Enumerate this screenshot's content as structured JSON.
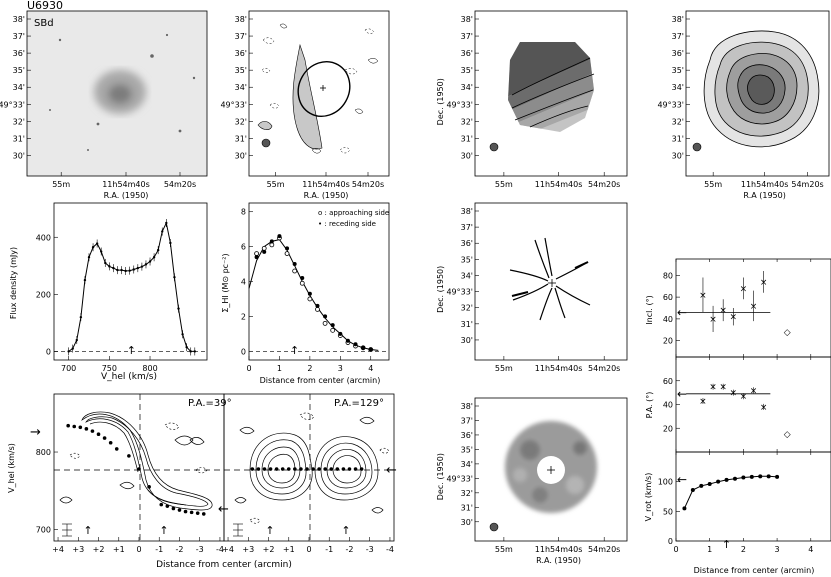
{
  "galaxy": "U6930",
  "morph_type": "SBd",
  "ra_label": "R.A. (1950)",
  "ra_label_alt": "R.A (1950)",
  "dec_label": "Dec. (1950)",
  "dec_ticks": [
    "38'",
    "37'",
    "36'",
    "35'",
    "34'",
    "33'",
    "32'",
    "31'",
    "30'"
  ],
  "dec_center": "49°33'",
  "ra_ticks": [
    "55m",
    "11h54m40s",
    "54m20s"
  ],
  "chart_data": [
    {
      "type": "line",
      "panel": "global HI profile",
      "xlabel": "V_hel (km/s)",
      "ylabel": "Flux density (mJy)",
      "xlim": [
        682,
        870
      ],
      "ylim": [
        -30,
        520
      ],
      "xticks": [
        700,
        750,
        800
      ],
      "yticks": [
        0,
        200,
        400
      ],
      "systemic_marker": 777,
      "x": [
        700,
        705,
        710,
        715,
        720,
        725,
        730,
        735,
        740,
        745,
        750,
        755,
        760,
        765,
        770,
        775,
        780,
        785,
        790,
        795,
        800,
        805,
        810,
        815,
        820,
        825,
        830,
        835,
        840,
        845,
        850,
        855
      ],
      "y": [
        0,
        10,
        40,
        120,
        250,
        330,
        365,
        378,
        350,
        310,
        298,
        292,
        285,
        285,
        282,
        283,
        287,
        292,
        297,
        305,
        315,
        330,
        355,
        420,
        450,
        380,
        260,
        150,
        60,
        15,
        0,
        0
      ]
    },
    {
      "type": "scatter",
      "panel": "radial HI surface density",
      "xlabel": "Distance from center (arcmin)",
      "ylabel": "Σ_HI (M⊙ pc⁻²)",
      "xlim": [
        0,
        4.6
      ],
      "ylim": [
        -0.5,
        8.5
      ],
      "xticks": [
        0,
        1,
        2,
        3,
        4
      ],
      "yticks": [
        0,
        2,
        4,
        6,
        8
      ],
      "legend": [
        "o : approaching side",
        "• : receding side"
      ],
      "systemic_marker": 1.5,
      "series": [
        {
          "name": "o : approaching side",
          "x": [
            0.25,
            0.5,
            0.75,
            1.0,
            1.25,
            1.5,
            1.75,
            2.0,
            2.25,
            2.5,
            2.75,
            3.0,
            3.25,
            3.5,
            3.75,
            4.0
          ],
          "y": [
            5.6,
            5.9,
            6.1,
            6.5,
            5.6,
            4.6,
            3.9,
            3.0,
            2.4,
            1.6,
            1.2,
            0.9,
            0.5,
            0.3,
            0.2,
            0.1
          ]
        },
        {
          "name": "• : receding side",
          "x": [
            0.25,
            0.5,
            0.75,
            1.0,
            1.25,
            1.5,
            1.75,
            2.0,
            2.25,
            2.5,
            2.75,
            3.0,
            3.25,
            3.5,
            3.75,
            4.0
          ],
          "y": [
            5.4,
            5.7,
            6.3,
            6.6,
            5.9,
            5.0,
            4.2,
            3.3,
            2.6,
            2.0,
            1.5,
            1.0,
            0.6,
            0.4,
            0.2,
            0.1
          ]
        },
        {
          "name": "fit",
          "x": [
            0,
            0.25,
            0.5,
            0.75,
            1.0,
            1.25,
            1.5,
            1.75,
            2.0,
            2.25,
            2.5,
            2.75,
            3.0,
            3.25,
            3.5,
            3.75,
            4.0,
            4.25
          ],
          "y": [
            3.6,
            5.2,
            6.0,
            6.3,
            6.4,
            5.8,
            4.9,
            4.0,
            3.2,
            2.5,
            1.9,
            1.4,
            1.0,
            0.6,
            0.35,
            0.2,
            0.1,
            0.05
          ]
        }
      ]
    },
    {
      "type": "scatter",
      "panel": "inclination",
      "ylabel": "Incl. (°)",
      "ylim": [
        5,
        95
      ],
      "yticks": [
        20,
        40,
        60,
        80
      ],
      "xlim": [
        0,
        4.6
      ],
      "adopted": 46,
      "x": [
        0.8,
        1.1,
        1.4,
        1.7,
        2.0,
        2.3,
        2.6
      ],
      "y": [
        62,
        40,
        48,
        42,
        68,
        52,
        74
      ],
      "err": [
        16,
        12,
        10,
        8,
        10,
        14,
        10
      ],
      "extra_x": 3.3,
      "extra_y": 28
    },
    {
      "type": "scatter",
      "panel": "position angle",
      "ylabel": "P.A. (°)",
      "ylim": [
        0,
        80
      ],
      "yticks": [
        20,
        40,
        60
      ],
      "xlim": [
        0,
        4.6
      ],
      "adopted": 49,
      "x": [
        0.8,
        1.1,
        1.4,
        1.7,
        2.0,
        2.3,
        2.6
      ],
      "y": [
        43,
        55,
        55,
        50,
        47,
        52,
        38
      ],
      "extra_x": 3.3,
      "extra_y": 15
    },
    {
      "type": "line",
      "panel": "rotation curve",
      "xlabel": "Distance from center (arcmin)",
      "ylabel": "V_rot (km/s)",
      "xlim": [
        0,
        4.6
      ],
      "ylim": [
        0,
        150
      ],
      "xticks": [
        0,
        1,
        2,
        3,
        4
      ],
      "yticks": [
        0,
        50,
        100
      ],
      "adopted_marker": 104,
      "systemic_marker": 1.5,
      "x": [
        0.25,
        0.5,
        0.75,
        1.0,
        1.25,
        1.5,
        1.75,
        2.0,
        2.25,
        2.5,
        2.75,
        3.0
      ],
      "y": [
        55,
        86,
        93,
        96,
        100,
        103,
        105,
        107,
        108,
        109,
        109,
        108
      ]
    },
    {
      "type": "scatter",
      "panel": "position-velocity diagram",
      "title": "P.A.=39°",
      "xlabel": "Distance from center (arcmin)",
      "ylabel": "V_hel (km/s)",
      "xlim": [
        4.2,
        -4.2
      ],
      "ylim": [
        685,
        875
      ],
      "xticks": [
        "+4",
        "+3",
        "+2",
        "+1",
        "0",
        "-1",
        "-2",
        "-3",
        "-4"
      ],
      "yticks": [
        700,
        800
      ],
      "systemic": 778,
      "x": [
        3.5,
        3.2,
        2.9,
        2.6,
        2.3,
        2.0,
        1.7,
        1.4,
        1.1,
        0.5,
        0,
        -0.5,
        -1.1,
        -1.4,
        -1.7,
        -2.0,
        -2.3,
        -2.6,
        -2.9,
        -3.2
      ],
      "y": [
        834,
        833,
        832,
        830,
        827,
        823,
        818,
        812,
        804,
        795,
        778,
        755,
        732,
        730,
        727,
        725,
        723,
        722,
        721,
        720
      ]
    },
    {
      "type": "scatter",
      "panel": "position-velocity diagram",
      "title": "P.A.=129°",
      "xlabel": "Distance from center (arcmin)",
      "xlim": [
        4.2,
        -4.2
      ],
      "ylim": [
        685,
        875
      ],
      "xticks": [
        "+4",
        "+3",
        "+2",
        "+1",
        "0",
        "-1",
        "-2",
        "-3",
        "-4"
      ],
      "systemic": 778,
      "x": [
        2.8,
        2.5,
        2.2,
        1.9,
        1.6,
        1.3,
        1.0,
        0.7,
        0.4,
        0.1,
        -0.2,
        -0.5,
        -0.8,
        -1.1,
        -1.4,
        -1.7,
        -2.0,
        -2.3,
        -2.6
      ],
      "y": [
        778,
        778,
        778,
        778,
        778,
        778,
        778,
        778,
        778,
        778,
        778,
        778,
        778,
        778,
        778,
        778,
        778,
        778,
        778
      ]
    }
  ]
}
